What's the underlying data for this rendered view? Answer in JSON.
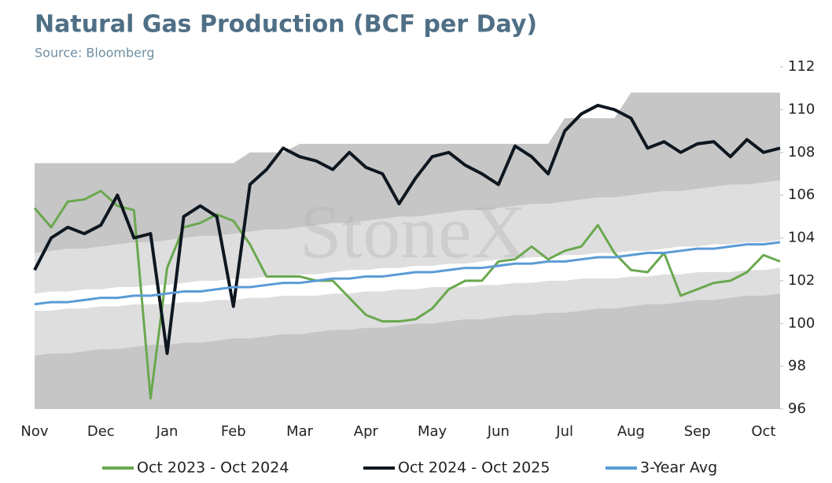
{
  "chart_data": {
    "type": "line",
    "title": "Natural Gas Production (BCF per Day)",
    "subtitle": "Source: Bloomberg",
    "watermark": "StoneX",
    "categories": [
      "Nov",
      null,
      null,
      null,
      "Dec",
      null,
      null,
      null,
      "Jan",
      null,
      null,
      null,
      "Feb",
      null,
      null,
      null,
      "Mar",
      null,
      null,
      null,
      "Apr",
      null,
      null,
      null,
      "May",
      null,
      null,
      null,
      "Jun",
      null,
      null,
      null,
      "Jul",
      null,
      null,
      null,
      "Aug",
      null,
      null,
      null,
      "Sep",
      null,
      null,
      null,
      "Oct",
      null
    ],
    "ylim": [
      96,
      112
    ],
    "yticks": [
      96,
      98,
      100,
      102,
      104,
      106,
      108,
      110,
      112
    ],
    "legend": "bottom",
    "bands": [
      {
        "color": "#c6c6c6",
        "upper": [
          107.5,
          107.5,
          107.5,
          107.5,
          107.5,
          107.5,
          107.5,
          107.5,
          107.5,
          107.5,
          107.5,
          107.5,
          107.5,
          108.0,
          108.0,
          108.0,
          108.4,
          108.4,
          108.4,
          108.4,
          108.4,
          108.4,
          108.4,
          108.4,
          108.4,
          108.4,
          108.4,
          108.4,
          108.4,
          108.4,
          108.4,
          108.4,
          109.6,
          109.6,
          109.6,
          109.6,
          110.8,
          110.8,
          110.8,
          110.8,
          110.8,
          110.8,
          110.8,
          110.8,
          110.8,
          110.8
        ]
      },
      {
        "color": "#dedede",
        "lower": [
          98.5,
          98.6,
          98.6,
          98.7,
          98.8,
          98.8,
          98.9,
          99.0,
          99.0,
          99.1,
          99.1,
          99.2,
          99.3,
          99.3,
          99.4,
          99.5,
          99.5,
          99.6,
          99.7,
          99.7,
          99.8,
          99.8,
          99.9,
          100.0,
          100.0,
          100.1,
          100.2,
          100.2,
          100.3,
          100.4,
          100.4,
          100.5,
          100.5,
          100.6,
          100.7,
          100.7,
          100.8,
          100.9,
          100.9,
          101.0,
          101.1,
          101.1,
          101.2,
          101.3,
          101.3,
          101.4
        ],
        "upper": [
          103.3,
          103.4,
          103.5,
          103.5,
          103.6,
          103.7,
          103.8,
          103.8,
          103.9,
          104.0,
          104.1,
          104.1,
          104.2,
          104.3,
          104.4,
          104.4,
          104.5,
          104.6,
          104.7,
          104.7,
          104.8,
          104.9,
          105.0,
          105.0,
          105.1,
          105.2,
          105.3,
          105.3,
          105.4,
          105.5,
          105.6,
          105.6,
          105.7,
          105.8,
          105.9,
          105.9,
          106.0,
          106.1,
          106.2,
          106.2,
          106.3,
          106.4,
          106.5,
          106.5,
          106.6,
          106.7
        ]
      },
      {
        "color": "#ffffff",
        "lower": [
          100.6,
          100.6,
          100.7,
          100.7,
          100.8,
          100.8,
          100.9,
          100.9,
          100.9,
          101.0,
          101.0,
          101.1,
          101.1,
          101.2,
          101.2,
          101.3,
          101.3,
          101.3,
          101.4,
          101.4,
          101.5,
          101.5,
          101.6,
          101.6,
          101.7,
          101.7,
          101.7,
          101.8,
          101.8,
          101.9,
          101.9,
          102.0,
          102.0,
          102.1,
          102.1,
          102.1,
          102.2,
          102.2,
          102.3,
          102.3,
          102.4,
          102.4,
          102.4,
          102.5,
          102.5,
          102.6
        ],
        "upper": [
          101.4,
          101.5,
          101.5,
          101.6,
          101.6,
          101.7,
          101.7,
          101.8,
          101.8,
          101.9,
          102.0,
          102.0,
          102.1,
          102.1,
          102.2,
          102.2,
          102.3,
          102.3,
          102.4,
          102.5,
          102.5,
          102.6,
          102.6,
          102.7,
          102.7,
          102.8,
          102.8,
          102.9,
          103.0,
          103.0,
          103.1,
          103.1,
          103.2,
          103.2,
          103.3,
          103.3,
          103.4,
          103.4,
          103.5,
          103.6,
          103.6,
          103.7,
          103.7,
          103.8,
          103.8,
          103.9
        ]
      }
    ],
    "series": [
      {
        "name": "Oct 2023 - Oct 2024",
        "color": "#6aa84f",
        "width": 3,
        "values": [
          105.4,
          104.5,
          105.7,
          105.8,
          106.2,
          105.5,
          105.3,
          96.5,
          102.6,
          104.5,
          104.7,
          105.1,
          104.8,
          103.7,
          102.2,
          102.2,
          102.2,
          102.0,
          102.0,
          101.2,
          100.4,
          100.1,
          100.1,
          100.2,
          100.7,
          101.6,
          102.0,
          102.0,
          102.9,
          103.0,
          103.6,
          103.0,
          103.4,
          103.6,
          104.6,
          103.3,
          102.5,
          102.4,
          103.3,
          101.3,
          101.6,
          101.9,
          102.0,
          102.4,
          103.2,
          102.9
        ]
      },
      {
        "name": "Oct 2024 - Oct 2025",
        "color": "#0e1720",
        "width": 4,
        "values": [
          102.5,
          104.0,
          104.5,
          104.2,
          104.6,
          106.0,
          104.0,
          104.2,
          98.6,
          105.0,
          105.5,
          105.0,
          100.8,
          106.5,
          107.2,
          108.2,
          107.8,
          107.6,
          107.2,
          108.0,
          107.3,
          107.0,
          105.6,
          106.8,
          107.8,
          108.0,
          107.4,
          107.0,
          106.5,
          108.3,
          107.8,
          107.0,
          109.0,
          109.8,
          110.2,
          110.0,
          109.6,
          108.2,
          108.5,
          108.0,
          108.4,
          108.5,
          107.8,
          108.6,
          108.0,
          108.2
        ]
      },
      {
        "name": "3-Year Avg",
        "color": "#5b9bd5",
        "width": 3,
        "values": [
          100.9,
          101.0,
          101.0,
          101.1,
          101.2,
          101.2,
          101.3,
          101.3,
          101.4,
          101.5,
          101.5,
          101.6,
          101.7,
          101.7,
          101.8,
          101.9,
          101.9,
          102.0,
          102.1,
          102.1,
          102.2,
          102.2,
          102.3,
          102.4,
          102.4,
          102.5,
          102.6,
          102.6,
          102.7,
          102.8,
          102.8,
          102.9,
          102.9,
          103.0,
          103.1,
          103.1,
          103.2,
          103.3,
          103.3,
          103.4,
          103.5,
          103.5,
          103.6,
          103.7,
          103.7,
          103.8
        ]
      }
    ]
  }
}
